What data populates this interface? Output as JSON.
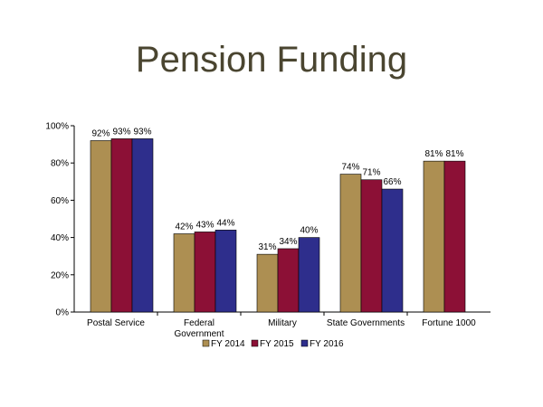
{
  "slide": {
    "title": "Pension Funding"
  },
  "chart_data": {
    "type": "bar",
    "title": "",
    "xlabel": "",
    "ylabel": "",
    "ylim": [
      0,
      100
    ],
    "y_ticks": [
      "0%",
      "20%",
      "40%",
      "60%",
      "80%",
      "100%"
    ],
    "y_tick_values": [
      0,
      20,
      40,
      60,
      80,
      100
    ],
    "categories": [
      [
        "Postal Service"
      ],
      [
        "Federal",
        "Government"
      ],
      [
        "Military"
      ],
      [
        "State Governments"
      ],
      [
        "Fortune 1000"
      ]
    ],
    "series": [
      {
        "name": "FY 2014",
        "color": "#ad8f52",
        "values": [
          92,
          42,
          31,
          74,
          81
        ],
        "labels": [
          "92%",
          "42%",
          "31%",
          "74%",
          "81%"
        ]
      },
      {
        "name": "FY 2015",
        "color": "#8c1036",
        "values": [
          93,
          43,
          34,
          71,
          81
        ],
        "labels": [
          "93%",
          "43%",
          "34%",
          "71%",
          "81%"
        ]
      },
      {
        "name": "FY 2016",
        "color": "#2e2e8c",
        "values": [
          93,
          44,
          40,
          66,
          null
        ],
        "labels": [
          "93%",
          "44%",
          "40%",
          "66%",
          null
        ]
      }
    ],
    "grid": false,
    "legend_position": "bottom"
  }
}
